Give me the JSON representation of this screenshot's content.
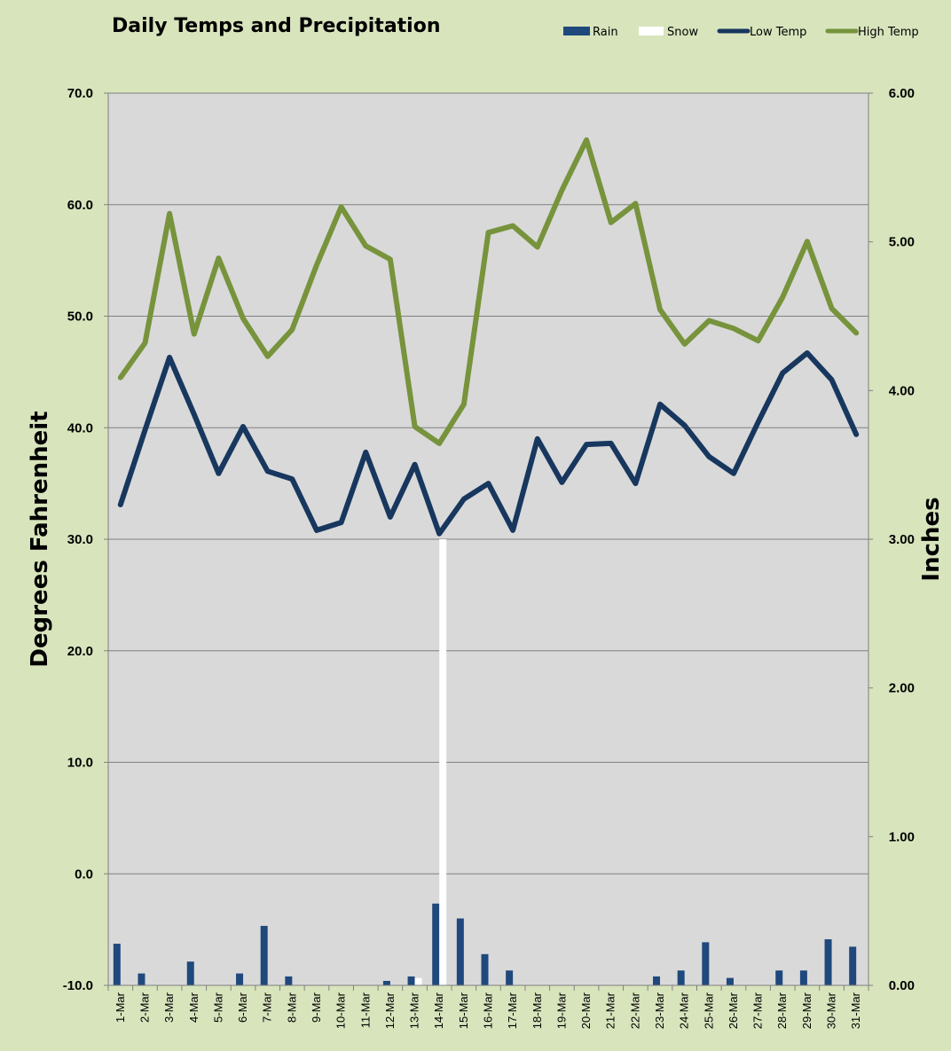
{
  "chart_data": {
    "type": "line",
    "title": "Daily Temps and Precipitation",
    "ylabel": "Degrees Fahrenheit",
    "y2label": "Inches",
    "ylim": [
      -10,
      70
    ],
    "y2lim": [
      0,
      6
    ],
    "yticks": [
      "70.0",
      "60.0",
      "50.0",
      "40.0",
      "30.0",
      "20.0",
      "10.0",
      "0.0",
      "-10.0"
    ],
    "y2ticks": [
      "6.00",
      "5.00",
      "4.00",
      "3.00",
      "2.00",
      "1.00",
      "0.00"
    ],
    "grid": true,
    "legend_position": "top-right",
    "colors": {
      "rain": "#1f497d",
      "snow": "#ffffff",
      "low": "#17375e",
      "high": "#77933c",
      "plot_bg": "#d9d9d9",
      "page_bg": "#d8e4bc",
      "grid": "#808080"
    },
    "categories": [
      "1-Mar",
      "2-Mar",
      "3-Mar",
      "4-Mar",
      "5-Mar",
      "6-Mar",
      "7-Mar",
      "8-Mar",
      "9-Mar",
      "10-Mar",
      "11-Mar",
      "12-Mar",
      "13-Mar",
      "14-Mar",
      "15-Mar",
      "16-Mar",
      "17-Mar",
      "18-Mar",
      "19-Mar",
      "20-Mar",
      "21-Mar",
      "22-Mar",
      "23-Mar",
      "24-Mar",
      "25-Mar",
      "26-Mar",
      "27-Mar",
      "28-Mar",
      "29-Mar",
      "30-Mar",
      "31-Mar"
    ],
    "series": [
      {
        "name": "Rain",
        "kind": "bar",
        "axis": "right",
        "values": [
          0.28,
          0.08,
          0,
          0.16,
          0,
          0.08,
          0.4,
          0.06,
          0,
          0,
          0,
          0.03,
          0.06,
          0.55,
          0.45,
          0.21,
          0.1,
          0,
          0,
          0,
          0,
          0,
          0.06,
          0.1,
          0.29,
          0.05,
          0,
          0.1,
          0.1,
          0.31,
          0.26
        ]
      },
      {
        "name": "Snow",
        "kind": "bar",
        "axis": "right",
        "values": [
          0,
          0,
          0,
          0,
          0,
          0,
          0,
          0,
          0,
          0,
          0,
          0,
          0.05,
          3.0,
          0,
          0,
          0,
          0,
          0,
          0,
          0,
          0,
          0,
          0,
          0,
          0,
          0,
          0,
          0,
          0,
          0
        ]
      },
      {
        "name": "Low Temp",
        "kind": "line",
        "axis": "left",
        "values": [
          33.1,
          39.8,
          46.3,
          41.2,
          35.9,
          40.1,
          36.1,
          35.4,
          30.8,
          31.5,
          37.8,
          32.0,
          36.7,
          30.5,
          33.6,
          35.0,
          30.8,
          39.0,
          35.1,
          38.5,
          38.6,
          35.0,
          42.1,
          40.2,
          37.4,
          35.9,
          40.5,
          44.9,
          46.7,
          44.3,
          39.4
        ]
      },
      {
        "name": "High Temp",
        "kind": "line",
        "axis": "left",
        "values": [
          44.5,
          47.6,
          59.2,
          48.4,
          55.2,
          49.8,
          46.4,
          48.8,
          54.6,
          59.8,
          56.3,
          55.1,
          40.1,
          38.6,
          42.1,
          57.5,
          58.1,
          56.2,
          61.3,
          65.8,
          58.4,
          60.1,
          50.6,
          47.5,
          49.6,
          48.9,
          47.8,
          51.7,
          56.7,
          50.7,
          48.5
        ]
      }
    ]
  }
}
